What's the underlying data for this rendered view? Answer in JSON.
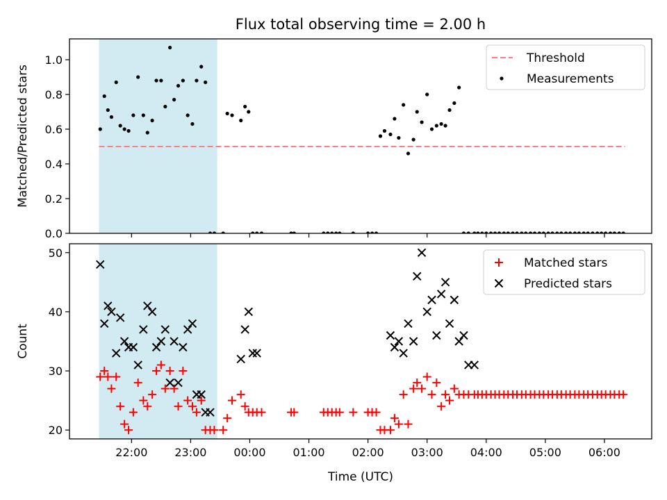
{
  "chart_data": {
    "title": "Flux total observing time = 2.00 h",
    "xlabel": "Time (UTC)",
    "x_unit": "hours (UTC, values past 24 continue past midnight)",
    "x_ticks": [
      {
        "value": 22,
        "label": "22:00"
      },
      {
        "value": 23,
        "label": "23:00"
      },
      {
        "value": 24,
        "label": "00:00"
      },
      {
        "value": 25,
        "label": "01:00"
      },
      {
        "value": 26,
        "label": "02:00"
      },
      {
        "value": 27,
        "label": "03:00"
      },
      {
        "value": 28,
        "label": "04:00"
      },
      {
        "value": 29,
        "label": "05:00"
      },
      {
        "value": 30,
        "label": "06:00"
      }
    ],
    "xlim": [
      20.95,
      30.8
    ],
    "shaded_span": [
      21.45,
      23.45
    ],
    "shaded_color": "#add8e6",
    "panels": [
      {
        "type": "scatter",
        "ylabel": "Matched/Predicted stars",
        "ylim": [
          0,
          1.12
        ],
        "y_ticks": [
          0.0,
          0.2,
          0.4,
          0.6,
          0.8,
          1.0
        ],
        "y_tick_labels": [
          "0.0",
          "0.2",
          "0.4",
          "0.6",
          "0.8",
          "1.0"
        ],
        "legend": [
          {
            "label": "Threshold",
            "kind": "dashed-line",
            "color": "#ff7f7f"
          },
          {
            "label": "Measurements",
            "kind": "dot",
            "color": "#000000"
          }
        ],
        "legend_position": "top-right",
        "threshold": {
          "value": 0.5,
          "x": [
            21.45,
            30.35
          ],
          "color": "#ff7f7f"
        },
        "series": [
          {
            "name": "Measurements",
            "color": "#000000",
            "x": [
              21.47,
              21.54,
              21.6,
              21.66,
              21.74,
              21.81,
              21.88,
              21.95,
              22.03,
              22.11,
              22.2,
              22.27,
              22.35,
              22.42,
              22.5,
              22.57,
              22.65,
              22.72,
              22.79,
              22.87,
              22.95,
              23.03,
              23.1,
              23.18,
              23.25,
              23.33,
              23.4,
              23.55,
              23.62,
              23.7,
              23.85,
              23.92,
              23.98,
              24.05,
              24.12,
              24.2,
              24.7,
              24.75,
              25.25,
              25.32,
              25.39,
              25.46,
              25.52,
              25.75,
              26.0,
              26.07,
              26.14,
              26.21,
              26.28,
              26.38,
              26.45,
              26.52,
              26.6,
              26.68,
              26.77,
              26.83,
              26.91,
              27.0,
              27.08,
              27.16,
              27.24,
              27.31,
              27.38,
              27.46,
              27.54,
              27.62,
              27.7,
              27.8,
              27.86,
              27.93,
              28.0,
              28.08,
              28.15,
              28.22,
              28.3,
              28.37,
              28.45,
              28.52,
              28.6,
              28.67,
              28.75,
              28.82,
              28.9,
              28.97,
              29.05,
              29.12,
              29.2,
              29.27,
              29.35,
              29.42,
              29.5,
              29.57,
              29.65,
              29.72,
              29.8,
              29.88,
              29.95,
              30.02,
              30.1,
              30.17,
              30.25,
              30.32
            ],
            "y": [
              0.6,
              0.79,
              0.71,
              0.67,
              0.87,
              0.62,
              0.6,
              0.59,
              0.68,
              0.9,
              0.68,
              0.58,
              0.65,
              0.88,
              0.88,
              0.73,
              1.07,
              0.77,
              0.85,
              0.88,
              0.68,
              0.63,
              0.88,
              0.96,
              0.87,
              0.0,
              0.0,
              0.0,
              0.69,
              0.68,
              0.65,
              0.73,
              0.7,
              0.0,
              0.0,
              0.0,
              0.0,
              0.0,
              0.0,
              0.0,
              0.0,
              0.0,
              0.0,
              0.0,
              0.0,
              0.0,
              0.0,
              0.56,
              0.59,
              0.57,
              0.66,
              0.55,
              0.74,
              0.46,
              0.54,
              0.7,
              0.64,
              0.8,
              0.6,
              0.62,
              0.63,
              0.62,
              0.71,
              0.75,
              0.84,
              0.0,
              0.0,
              0.0,
              0.0,
              0.0,
              0.0,
              0.0,
              0.0,
              0.0,
              0.0,
              0.0,
              0.0,
              0.0,
              0.0,
              0.0,
              0.0,
              0.0,
              0.0,
              0.0,
              0.0,
              0.0,
              0.0,
              0.0,
              0.0,
              0.0,
              0.0,
              0.0,
              0.0,
              0.0,
              0.0,
              0.0,
              0.0,
              0.0,
              0.0,
              0.0,
              0.0,
              0.0
            ]
          }
        ]
      },
      {
        "type": "scatter",
        "ylabel": "Count",
        "ylim": [
          18.5,
          51.5
        ],
        "y_ticks": [
          20,
          30,
          40,
          50
        ],
        "y_tick_labels": [
          "20",
          "30",
          "40",
          "50"
        ],
        "legend": [
          {
            "label": "Matched stars",
            "kind": "plus",
            "color": "#ff0000"
          },
          {
            "label": "Predicted stars",
            "kind": "cross",
            "color": "#000000"
          }
        ],
        "legend_position": "top-right",
        "series": [
          {
            "name": "Matched stars",
            "marker": "plus",
            "color": "#ff0000",
            "x": [
              21.47,
              21.54,
              21.6,
              21.66,
              21.74,
              21.81,
              21.88,
              21.95,
              22.03,
              22.11,
              22.2,
              22.27,
              22.35,
              22.42,
              22.5,
              22.57,
              22.65,
              22.72,
              22.79,
              22.87,
              22.95,
              23.03,
              23.1,
              23.18,
              23.25,
              23.33,
              23.4,
              23.55,
              23.62,
              23.7,
              23.85,
              23.92,
              23.98,
              24.05,
              24.12,
              24.2,
              24.7,
              24.75,
              25.25,
              25.32,
              25.39,
              25.46,
              25.52,
              25.75,
              26.0,
              26.07,
              26.14,
              26.21,
              26.28,
              26.38,
              26.45,
              26.52,
              26.6,
              26.68,
              26.77,
              26.83,
              26.91,
              27.0,
              27.08,
              27.16,
              27.24,
              27.31,
              27.38,
              27.46,
              27.54,
              27.62,
              27.7,
              27.8,
              27.86,
              27.93,
              28.0,
              28.08,
              28.15,
              28.22,
              28.3,
              28.37,
              28.45,
              28.52,
              28.6,
              28.67,
              28.75,
              28.82,
              28.9,
              28.97,
              29.05,
              29.12,
              29.2,
              29.27,
              29.35,
              29.42,
              29.5,
              29.57,
              29.65,
              29.72,
              29.8,
              29.88,
              29.95,
              30.02,
              30.1,
              30.17,
              30.25,
              30.32
            ],
            "y": [
              29,
              30,
              29,
              27,
              29,
              24,
              21,
              20,
              23,
              28,
              25,
              24,
              26,
              30,
              31,
              27,
              30,
              27,
              24,
              30,
              25,
              24,
              23,
              25,
              20,
              20,
              20,
              20,
              22,
              25,
              26,
              24,
              23,
              23,
              23,
              23,
              23,
              23,
              23,
              23,
              23,
              23,
              23,
              23,
              23,
              23,
              23,
              20,
              20,
              20,
              22,
              21,
              26,
              21,
              27,
              28,
              27,
              29,
              26,
              28,
              24,
              26,
              25,
              27,
              26,
              26,
              26,
              26,
              26,
              26,
              26,
              26,
              26,
              26,
              26,
              26,
              26,
              26,
              26,
              26,
              26,
              26,
              26,
              26,
              26,
              26,
              26,
              26,
              26,
              26,
              26,
              26,
              26,
              26,
              26,
              26,
              26,
              26,
              26,
              26,
              26,
              26
            ]
          },
          {
            "name": "Predicted stars",
            "marker": "cross",
            "color": "#000000",
            "x": [
              21.47,
              21.54,
              21.6,
              21.66,
              21.74,
              21.81,
              21.88,
              21.95,
              22.03,
              22.11,
              22.2,
              22.27,
              22.35,
              22.42,
              22.5,
              22.57,
              22.65,
              22.72,
              22.79,
              22.87,
              22.95,
              23.03,
              23.1,
              23.18,
              23.25,
              23.33,
              23.85,
              23.92,
              23.98,
              24.05,
              24.12,
              26.38,
              26.45,
              26.52,
              26.6,
              26.68,
              26.77,
              26.83,
              26.91,
              27.0,
              27.08,
              27.16,
              27.24,
              27.31,
              27.38,
              27.46,
              27.54,
              27.62,
              27.7,
              27.8
            ],
            "y": [
              48,
              38,
              41,
              40,
              33,
              39,
              35,
              34,
              34,
              31,
              37,
              41,
              40,
              34,
              35,
              37,
              28,
              35,
              28,
              34,
              37,
              38,
              26,
              26,
              23,
              23,
              32,
              37,
              40,
              33,
              33,
              36,
              34,
              35,
              33,
              38,
              35,
              46,
              50,
              40,
              42,
              36,
              43,
              45,
              38,
              42,
              35,
              36,
              31,
              31
            ]
          }
        ]
      }
    ]
  }
}
